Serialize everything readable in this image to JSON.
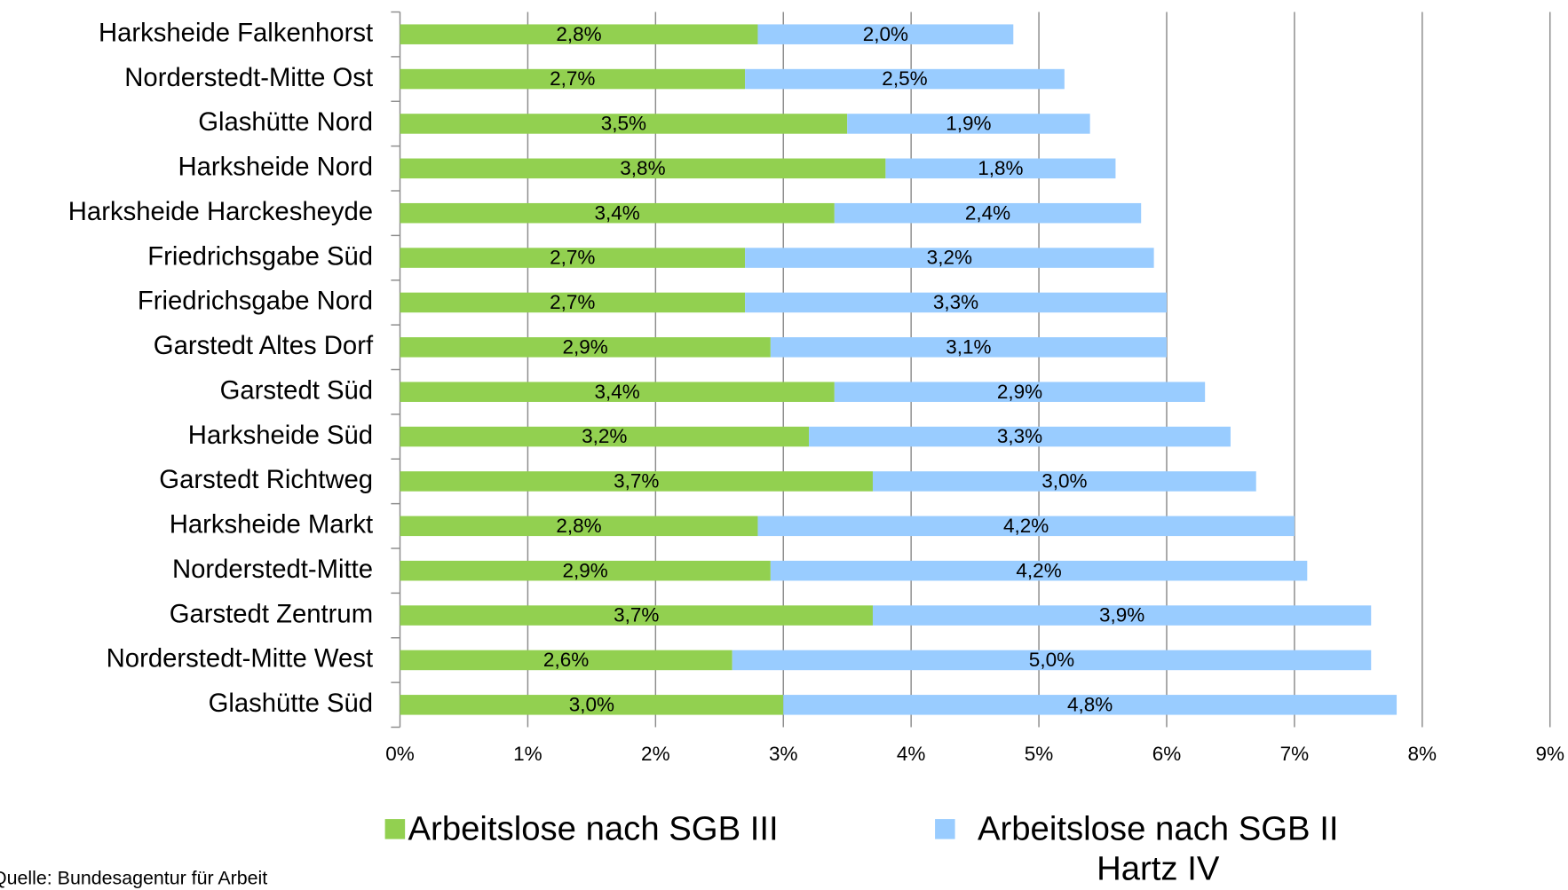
{
  "chart_data": {
    "type": "stacked-barh",
    "categories": [
      "Harksheide Falkenhorst",
      "Norderstedt-Mitte Ost",
      "Glashütte Nord",
      "Harksheide Nord",
      "Harksheide Harckesheyde",
      "Friedrichsgabe Süd",
      "Friedrichsgabe Nord",
      "Garstedt Altes Dorf",
      "Garstedt Süd",
      "Harksheide Süd",
      "Garstedt Richtweg",
      "Harksheide Markt",
      "Norderstedt-Mitte",
      "Garstedt Zentrum",
      "Norderstedt-Mitte West",
      "Glashütte Süd"
    ],
    "series": [
      {
        "name": "Arbeitslose nach SGB III",
        "color": "#92d050",
        "values": [
          2.8,
          2.7,
          3.5,
          3.8,
          3.4,
          2.7,
          2.7,
          2.9,
          3.4,
          3.2,
          3.7,
          2.8,
          2.9,
          3.7,
          2.6,
          3.0
        ],
        "value_labels": [
          "2,8%",
          "2,7%",
          "3,5%",
          "3,8%",
          "3,4%",
          "2,7%",
          "2,7%",
          "2,9%",
          "3,4%",
          "3,2%",
          "3,7%",
          "2,8%",
          "2,9%",
          "3,7%",
          "2,6%",
          "3,0%"
        ]
      },
      {
        "name": "Arbeitslose nach SGB II Hartz IV",
        "color": "#99ccff",
        "values": [
          2.0,
          2.5,
          1.9,
          1.8,
          2.4,
          3.2,
          3.3,
          3.1,
          2.9,
          3.3,
          3.0,
          4.2,
          4.2,
          3.9,
          5.0,
          4.8
        ],
        "value_labels": [
          "2,0%",
          "2,5%",
          "1,9%",
          "1,8%",
          "2,4%",
          "3,2%",
          "3,3%",
          "3,1%",
          "2,9%",
          "3,3%",
          "3,0%",
          "4,2%",
          "4,2%",
          "3,9%",
          "5,0%",
          "4,8%"
        ]
      }
    ],
    "xlim": [
      0,
      9
    ],
    "xticks": [
      {
        "value": 0,
        "label": "0%"
      },
      {
        "value": 1,
        "label": "1%"
      },
      {
        "value": 2,
        "label": "2%"
      },
      {
        "value": 3,
        "label": "3%"
      },
      {
        "value": 4,
        "label": "4%"
      },
      {
        "value": 5,
        "label": "5%"
      },
      {
        "value": 6,
        "label": "6%"
      },
      {
        "value": 7,
        "label": "7%"
      },
      {
        "value": 8,
        "label": "8%"
      },
      {
        "value": 9,
        "label": "9%"
      }
    ],
    "grid": true,
    "legend": "bottom",
    "source": "Quelle: Bundesagentur für Arbeit"
  }
}
